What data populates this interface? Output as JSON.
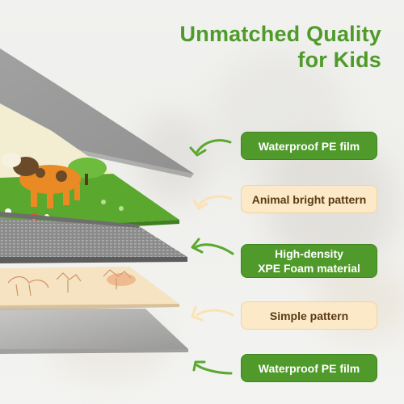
{
  "headline": {
    "line1": "Unmatched Quality",
    "line2": "for Kids"
  },
  "labels": [
    {
      "text": "Waterproof PE film",
      "style": "green"
    },
    {
      "text": "Animal bright pattern",
      "style": "cream"
    },
    {
      "text_line1": "High-density",
      "text_line2": "XPE Foam material",
      "style": "green"
    },
    {
      "text": "Simple pattern",
      "style": "cream"
    },
    {
      "text": "Waterproof PE film",
      "style": "green"
    }
  ],
  "colors": {
    "brand_green": "#4f9a2a",
    "cream": "#fbe9c7",
    "pattern_green": "#5aa82e",
    "foam_gray": "#8a8a8a"
  },
  "icons": [
    "curved-arrow-icon"
  ]
}
